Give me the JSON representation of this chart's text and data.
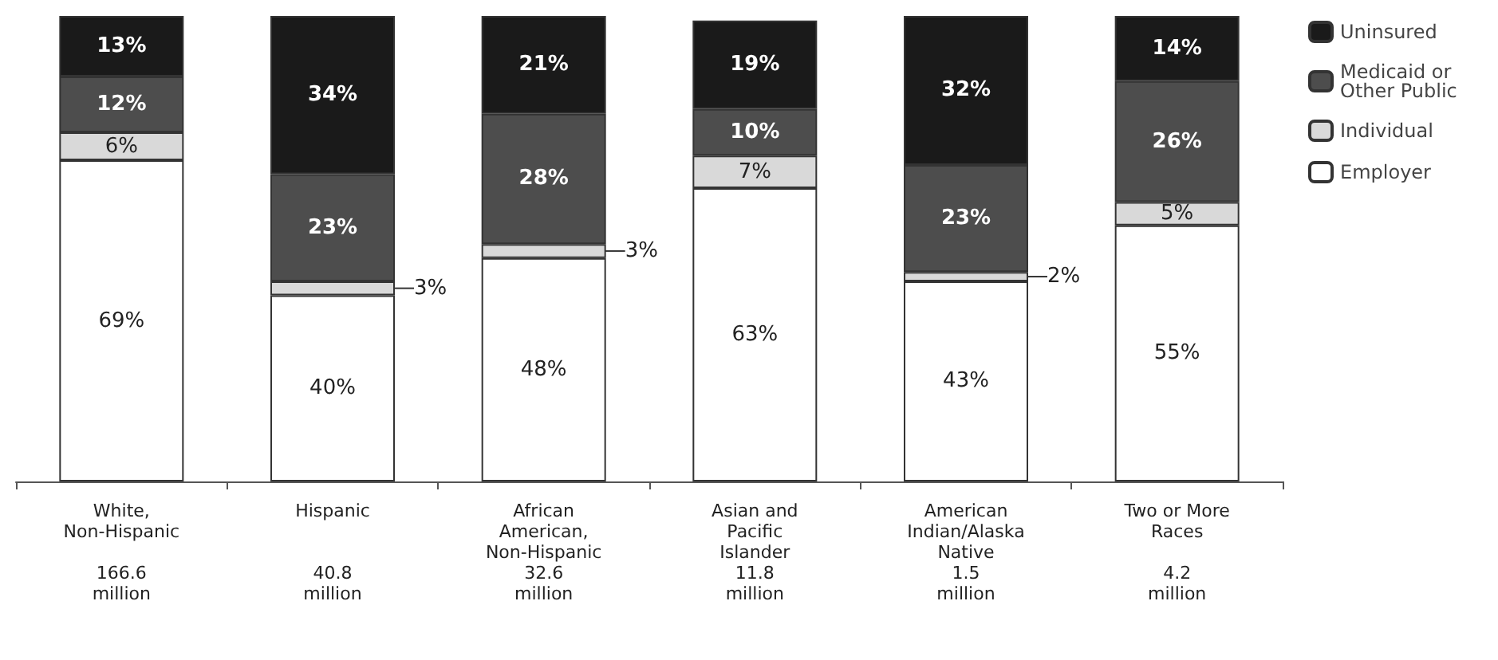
{
  "chart_data": {
    "type": "bar",
    "stacked": true,
    "legend": "top right",
    "grid": false,
    "categories": [
      "White,\nNon-Hispanic\n\n166.6\nmillion",
      "Hispanic\n\n\n40.8\nmillion",
      "African\nAmerican,\nNon-Hispanic\n32.6\nmillion",
      "Asian and\nPacific\nIslander\n11.8\nmillion",
      "American\nIndian/Alaska\nNative\n1.5\nmillion",
      "Two or More\nRaces\n\n4.2\nmillion"
    ],
    "series": [
      {
        "name": "Employer",
        "color": "#ffffff",
        "values": [
          69,
          40,
          48,
          63,
          43,
          55
        ],
        "value_labels": [
          "69%",
          "40%",
          "48%",
          "63%",
          "43%",
          "55%"
        ]
      },
      {
        "name": "Individual",
        "color": "#d9d9d9",
        "values": [
          6,
          3,
          3,
          7,
          2,
          5
        ],
        "value_labels": [
          "6%",
          "3%",
          "3%",
          "7%",
          "2%",
          "5%"
        ]
      },
      {
        "name": "Medicaid or\nOther Public",
        "color": "#4d4d4d",
        "values": [
          12,
          23,
          28,
          10,
          23,
          26
        ],
        "value_labels": [
          "12%",
          "23%",
          "28%",
          "10%",
          "23%",
          "26%"
        ]
      },
      {
        "name": "Uninsured",
        "color": "#1a1a1a",
        "values": [
          13,
          34,
          21,
          19,
          32,
          14
        ],
        "value_labels": [
          "13%",
          "34%",
          "21%",
          "19%",
          "32%",
          "14%"
        ]
      }
    ]
  }
}
